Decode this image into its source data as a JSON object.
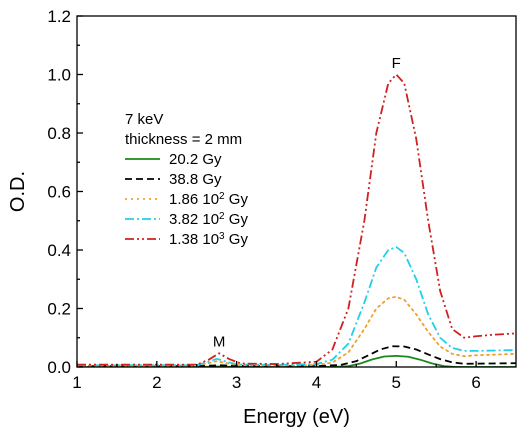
{
  "chart_data": {
    "type": "line",
    "title": "",
    "xlabel": "Energy (eV)",
    "ylabel": "O.D.",
    "xlim": [
      1,
      6.5
    ],
    "ylim": [
      0,
      1.2
    ],
    "xticks": [
      "1",
      "2",
      "3",
      "4",
      "5",
      "6"
    ],
    "yticks": [
      "0.0",
      "0.2",
      "0.4",
      "0.6",
      "0.8",
      "1.0",
      "1.2"
    ],
    "legend_header": [
      "7 keV",
      "thickness = 2 mm"
    ],
    "legend_position": "upper-left",
    "annotations": [
      {
        "text": "M",
        "x": 2.78,
        "y": 0.07
      },
      {
        "text": "F",
        "x": 5.0,
        "y": 1.4
      }
    ],
    "series": [
      {
        "name": "20.2 Gy",
        "name_parts": [
          "20.2 Gy"
        ],
        "color": "#1a8a1a",
        "dash": "solid",
        "points": [
          [
            1.0,
            0.0
          ],
          [
            2.5,
            0.0
          ],
          [
            2.7,
            0.001
          ],
          [
            2.8,
            0.002
          ],
          [
            2.9,
            0.001
          ],
          [
            3.2,
            0.0
          ],
          [
            4.2,
            0.0
          ],
          [
            4.4,
            0.003
          ],
          [
            4.55,
            0.012
          ],
          [
            4.7,
            0.026
          ],
          [
            4.85,
            0.036
          ],
          [
            5.0,
            0.038
          ],
          [
            5.15,
            0.035
          ],
          [
            5.3,
            0.025
          ],
          [
            5.45,
            0.012
          ],
          [
            5.6,
            0.003
          ],
          [
            5.75,
            0.0
          ],
          [
            6.5,
            0.0
          ]
        ]
      },
      {
        "name": "38.8 Gy",
        "name_parts": [
          "38.8 Gy"
        ],
        "color": "#000000",
        "dash": "dashed",
        "points": [
          [
            1.0,
            0.003
          ],
          [
            2.5,
            0.003
          ],
          [
            2.7,
            0.005
          ],
          [
            2.8,
            0.006
          ],
          [
            2.9,
            0.005
          ],
          [
            3.2,
            0.003
          ],
          [
            4.0,
            0.003
          ],
          [
            4.3,
            0.007
          ],
          [
            4.5,
            0.02
          ],
          [
            4.65,
            0.04
          ],
          [
            4.8,
            0.06
          ],
          [
            4.95,
            0.071
          ],
          [
            5.1,
            0.07
          ],
          [
            5.25,
            0.06
          ],
          [
            5.4,
            0.043
          ],
          [
            5.55,
            0.027
          ],
          [
            5.7,
            0.016
          ],
          [
            5.85,
            0.011
          ],
          [
            6.2,
            0.012
          ],
          [
            6.5,
            0.013
          ]
        ]
      },
      {
        "name": "1.86 10^2 Gy",
        "name_parts": [
          "1.86 10",
          "2",
          " Gy"
        ],
        "color": "#f0a030",
        "dash": "dotted",
        "points": [
          [
            1.0,
            0.005
          ],
          [
            2.5,
            0.005
          ],
          [
            2.65,
            0.013
          ],
          [
            2.75,
            0.02
          ],
          [
            2.85,
            0.014
          ],
          [
            3.0,
            0.007
          ],
          [
            3.5,
            0.005
          ],
          [
            4.0,
            0.007
          ],
          [
            4.2,
            0.015
          ],
          [
            4.4,
            0.05
          ],
          [
            4.6,
            0.13
          ],
          [
            4.75,
            0.2
          ],
          [
            4.9,
            0.235
          ],
          [
            5.0,
            0.24
          ],
          [
            5.1,
            0.23
          ],
          [
            5.25,
            0.18
          ],
          [
            5.4,
            0.12
          ],
          [
            5.55,
            0.07
          ],
          [
            5.7,
            0.045
          ],
          [
            5.85,
            0.037
          ],
          [
            6.0,
            0.04
          ],
          [
            6.5,
            0.045
          ]
        ]
      },
      {
        "name": "3.82 10^2 Gy",
        "name_parts": [
          "3.82 10",
          "2",
          " Gy"
        ],
        "color": "#20d0e8",
        "dash": "dash-dot",
        "points": [
          [
            1.0,
            0.006
          ],
          [
            2.5,
            0.006
          ],
          [
            2.65,
            0.018
          ],
          [
            2.75,
            0.028
          ],
          [
            2.85,
            0.02
          ],
          [
            3.0,
            0.009
          ],
          [
            3.5,
            0.007
          ],
          [
            4.0,
            0.01
          ],
          [
            4.2,
            0.025
          ],
          [
            4.4,
            0.08
          ],
          [
            4.6,
            0.22
          ],
          [
            4.75,
            0.34
          ],
          [
            4.9,
            0.4
          ],
          [
            5.0,
            0.41
          ],
          [
            5.1,
            0.39
          ],
          [
            5.25,
            0.3
          ],
          [
            5.4,
            0.18
          ],
          [
            5.55,
            0.1
          ],
          [
            5.7,
            0.065
          ],
          [
            5.85,
            0.055
          ],
          [
            6.0,
            0.055
          ],
          [
            6.5,
            0.058
          ]
        ]
      },
      {
        "name": "1.38 10^3 Gy",
        "name_parts": [
          "1.38 10",
          "3",
          " Gy"
        ],
        "color": "#d02020",
        "dash": "dash-dot-dot",
        "points": [
          [
            1.0,
            0.008
          ],
          [
            2.5,
            0.008
          ],
          [
            2.65,
            0.025
          ],
          [
            2.78,
            0.047
          ],
          [
            2.9,
            0.028
          ],
          [
            3.05,
            0.012
          ],
          [
            3.5,
            0.01
          ],
          [
            4.0,
            0.018
          ],
          [
            4.2,
            0.06
          ],
          [
            4.4,
            0.2
          ],
          [
            4.6,
            0.5
          ],
          [
            4.75,
            0.8
          ],
          [
            4.9,
            0.97
          ],
          [
            5.0,
            1.0
          ],
          [
            5.1,
            0.97
          ],
          [
            5.25,
            0.78
          ],
          [
            5.4,
            0.5
          ],
          [
            5.55,
            0.26
          ],
          [
            5.7,
            0.13
          ],
          [
            5.85,
            0.1
          ],
          [
            6.0,
            0.105
          ],
          [
            6.2,
            0.11
          ],
          [
            6.5,
            0.115
          ]
        ]
      }
    ]
  }
}
